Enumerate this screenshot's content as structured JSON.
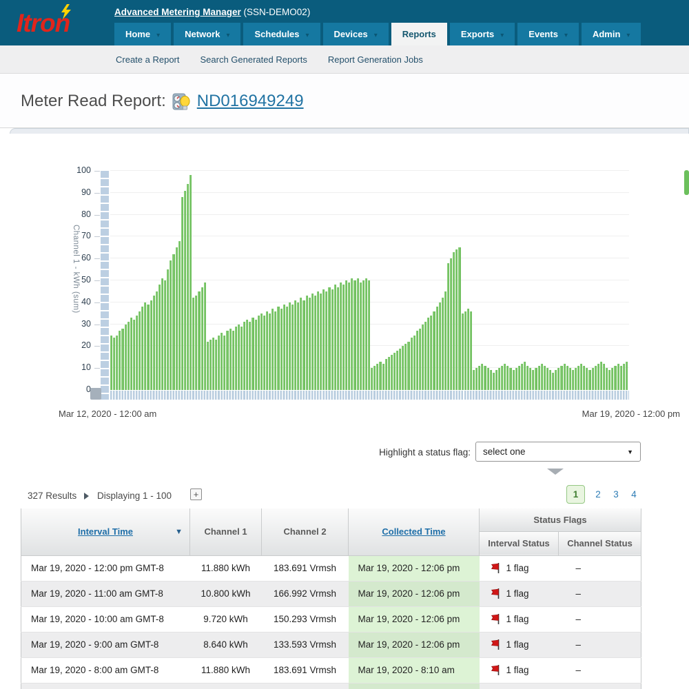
{
  "header": {
    "logo_text": "Itron",
    "app_title": "Advanced Metering Manager",
    "app_subtitle": " (SSN-DEMO02)",
    "nav": [
      {
        "label": "Home",
        "active": false,
        "has_dropdown": true
      },
      {
        "label": "Network",
        "active": false,
        "has_dropdown": true
      },
      {
        "label": "Schedules",
        "active": false,
        "has_dropdown": true
      },
      {
        "label": "Devices",
        "active": false,
        "has_dropdown": true
      },
      {
        "label": "Reports",
        "active": true,
        "has_dropdown": false
      },
      {
        "label": "Exports",
        "active": false,
        "has_dropdown": true
      },
      {
        "label": "Events",
        "active": false,
        "has_dropdown": true
      },
      {
        "label": "Admin",
        "active": false,
        "has_dropdown": true
      }
    ],
    "subnav": [
      "Create a Report",
      "Search Generated Reports",
      "Report Generation Jobs"
    ]
  },
  "page": {
    "title": "Meter Read Report:",
    "device_link": "ND016949249"
  },
  "chart_data": {
    "type": "bar",
    "title": "",
    "ylabel": "Channel 1 - kWh (sum)",
    "xlabel": "",
    "ylim": [
      0,
      100
    ],
    "y_ticks": [
      0,
      10,
      20,
      30,
      40,
      50,
      60,
      70,
      80,
      90,
      100
    ],
    "x_start_label": "Mar 12, 2020 - 12:00 am",
    "x_end_label": "Mar 19, 2020 - 12:00 pm",
    "bar_color": "#74c263",
    "grid": true,
    "values": [
      25,
      24,
      25,
      27,
      28,
      30,
      31,
      33,
      32,
      34,
      36,
      38,
      40,
      39,
      41,
      43,
      45,
      48,
      51,
      50,
      55,
      59,
      62,
      65,
      68,
      88,
      91,
      94,
      98,
      42,
      43,
      45,
      47,
      49,
      22,
      23,
      24,
      23,
      25,
      26,
      25,
      27,
      28,
      27,
      29,
      30,
      29,
      31,
      32,
      31,
      33,
      32,
      34,
      35,
      34,
      36,
      35,
      37,
      36,
      38,
      37,
      39,
      38,
      40,
      39,
      41,
      40,
      42,
      41,
      43,
      42,
      44,
      43,
      45,
      44,
      46,
      45,
      47,
      46,
      48,
      47,
      49,
      48,
      50,
      49,
      51,
      50,
      51,
      49,
      50,
      51,
      50,
      10,
      11,
      12,
      13,
      12,
      14,
      15,
      16,
      17,
      18,
      19,
      20,
      21,
      22,
      24,
      25,
      27,
      28,
      30,
      31,
      33,
      34,
      36,
      38,
      40,
      42,
      45,
      58,
      60,
      63,
      64,
      65,
      35,
      36,
      37,
      36,
      9,
      10,
      11,
      12,
      11,
      10,
      9,
      8,
      9,
      10,
      11,
      12,
      11,
      10,
      9,
      10,
      11,
      12,
      13,
      11,
      10,
      9,
      10,
      11,
      12,
      11,
      10,
      9,
      8,
      9,
      10,
      11,
      12,
      11,
      10,
      9,
      10,
      11,
      12,
      11,
      10,
      9,
      10,
      11,
      12,
      13,
      12,
      10,
      9,
      10,
      11,
      12,
      11,
      12,
      13
    ]
  },
  "filter": {
    "label": "Highlight a status flag:",
    "selected": "select one"
  },
  "results": {
    "count_text": "327 Results",
    "displaying_text": "Displaying 1 - 100",
    "expand_icon": "+"
  },
  "pagination": {
    "current": "1",
    "pages": [
      "1",
      "2",
      "3",
      "4"
    ]
  },
  "table": {
    "columns": {
      "interval_time": "Interval Time",
      "channel1": "Channel 1",
      "channel2": "Channel 2",
      "collected_time": "Collected Time",
      "status_flags": "Status Flags",
      "interval_status": "Interval Status",
      "channel_status": "Channel Status"
    },
    "rows": [
      {
        "interval": "Mar 19, 2020 - 12:00 pm GMT-8",
        "ch1": "11.880 kWh",
        "ch2": "183.691 Vrmsh",
        "collected": "Mar 19, 2020 - 12:06 pm",
        "interval_status": "1 flag",
        "channel_status": "–"
      },
      {
        "interval": "Mar 19, 2020 - 11:00 am GMT-8",
        "ch1": "10.800 kWh",
        "ch2": "166.992 Vrmsh",
        "collected": "Mar 19, 2020 - 12:06 pm",
        "interval_status": "1 flag",
        "channel_status": "–"
      },
      {
        "interval": "Mar 19, 2020 - 10:00 am GMT-8",
        "ch1": "9.720 kWh",
        "ch2": "150.293 Vrmsh",
        "collected": "Mar 19, 2020 - 12:06 pm",
        "interval_status": "1 flag",
        "channel_status": "–"
      },
      {
        "interval": "Mar 19, 2020 - 9:00 am GMT-8",
        "ch1": "8.640 kWh",
        "ch2": "133.593 Vrmsh",
        "collected": "Mar 19, 2020 - 12:06 pm",
        "interval_status": "1 flag",
        "channel_status": "–"
      },
      {
        "interval": "Mar 19, 2020 - 8:00 am GMT-8",
        "ch1": "11.880 kWh",
        "ch2": "183.691 Vrmsh",
        "collected": "Mar 19, 2020 - 8:10 am",
        "interval_status": "1 flag",
        "channel_status": "–"
      }
    ]
  }
}
